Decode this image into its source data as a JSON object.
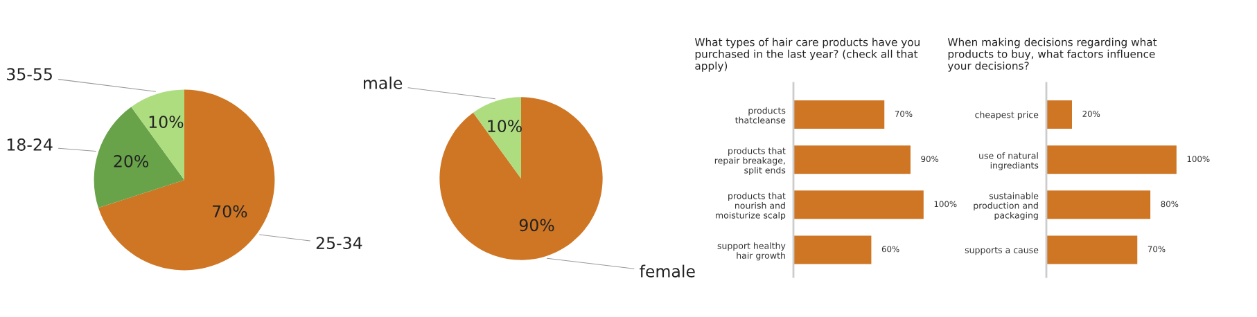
{
  "chart_data": [
    {
      "type": "pie",
      "categories": [
        "25-34",
        "18-24",
        "35-55"
      ],
      "values": [
        70,
        20,
        10
      ],
      "colors": [
        "#cf7624",
        "#68a34a",
        "#aedd7f"
      ],
      "value_labels": [
        "70%",
        "20%",
        "10%"
      ]
    },
    {
      "type": "pie",
      "categories": [
        "female",
        "male"
      ],
      "values": [
        90,
        10
      ],
      "colors": [
        "#cf7624",
        "#aedd7f"
      ],
      "value_labels": [
        "90%",
        "10%"
      ]
    },
    {
      "type": "bar",
      "orientation": "horizontal",
      "title": "What types of hair care products have you\npurchased in the last year? (check all that\napply)",
      "categories": [
        "products\nthatcleanse",
        "products that\nrepair breakage,\nsplit ends",
        "products that\nnourish and\nmoisturize scalp",
        "support healthy\nhair growth"
      ],
      "values": [
        70,
        90,
        100,
        60
      ],
      "color": "#cf7624",
      "value_labels": [
        "70%",
        "90%",
        "100%",
        "60%"
      ]
    },
    {
      "type": "bar",
      "orientation": "horizontal",
      "title": "When making decisions regarding what\nproducts to buy, what factors influence\nyour decisions?",
      "categories": [
        "cheapest price",
        "use of natural\ningrediants",
        "sustainable\nproduction and\npackaging",
        "supports a cause"
      ],
      "values": [
        20,
        100,
        80,
        70
      ],
      "color": "#cf7624",
      "value_labels": [
        "20%",
        "100%",
        "80%",
        "70%"
      ]
    }
  ]
}
